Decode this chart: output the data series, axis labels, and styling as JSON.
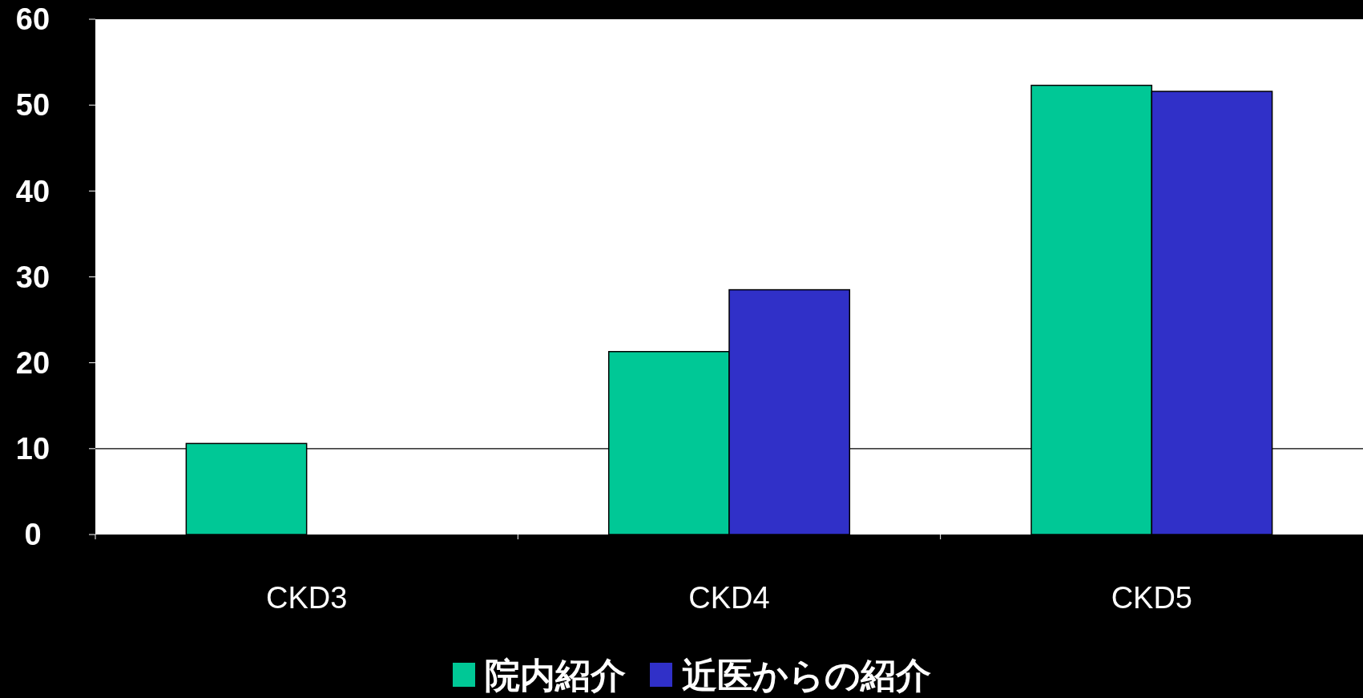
{
  "chart_data": {
    "type": "bar",
    "categories": [
      "CKD3",
      "CKD4",
      "CKD5"
    ],
    "series": [
      {
        "name": "院内紹介",
        "color": "#00c896",
        "values": [
          10.6,
          21.3,
          52.3
        ]
      },
      {
        "name": "近医からの紹介",
        "color": "#3030c8",
        "values": [
          null,
          28.5,
          51.6
        ]
      }
    ],
    "ylim": [
      0,
      60
    ],
    "yticks": [
      0,
      10,
      20,
      30,
      40,
      50,
      60
    ],
    "ref_lines": [
      {
        "axis": "y",
        "value": 10,
        "color": "#000000"
      }
    ],
    "legend": "bottom"
  }
}
